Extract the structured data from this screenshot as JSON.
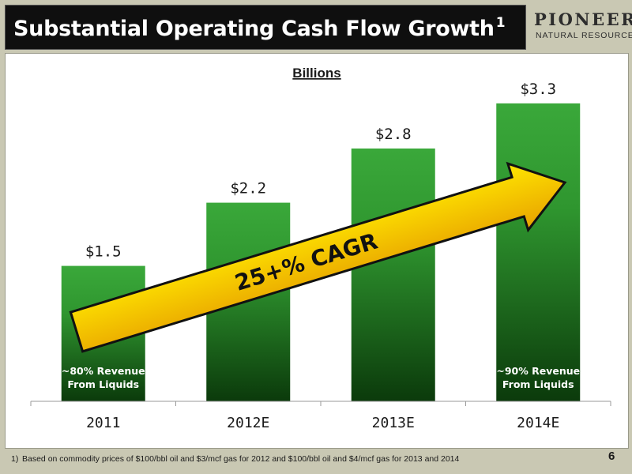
{
  "slide": {
    "title": "Substantial Operating Cash Flow Growth",
    "title_superscript": "1",
    "page_number": "6"
  },
  "logo": {
    "name": "PIONEER",
    "subtitle": "NATURAL RESOURCES"
  },
  "footnote": {
    "marker": "1)",
    "text": "Based on commodity prices of $100/bbl oil and $3/mcf gas for 2012 and $100/bbl oil and $4/mcf gas for 2013 and 2014"
  },
  "chart_data": {
    "type": "bar",
    "subtitle": "Billions",
    "categories": [
      "2011",
      "2012E",
      "2013E",
      "2014E"
    ],
    "values": [
      1.5,
      2.2,
      2.8,
      3.3
    ],
    "value_labels": [
      "$1.5",
      "$2.2",
      "$2.8",
      "$3.3"
    ],
    "ylim": [
      0,
      3.5
    ],
    "grid": false,
    "bar_color_top": "#3aa83a",
    "bar_color_bottom": "#0b3a0b",
    "arrow_label": "25+% CAGR",
    "arrow_color_top": "#ffe600",
    "arrow_color_bottom": "#e8a200",
    "bar_notes": [
      {
        "category": "2011",
        "lines": [
          "~80% Revenue",
          "From Liquids"
        ]
      },
      {
        "category": "2014E",
        "lines": [
          "~90% Revenue",
          "From Liquids"
        ]
      }
    ]
  }
}
